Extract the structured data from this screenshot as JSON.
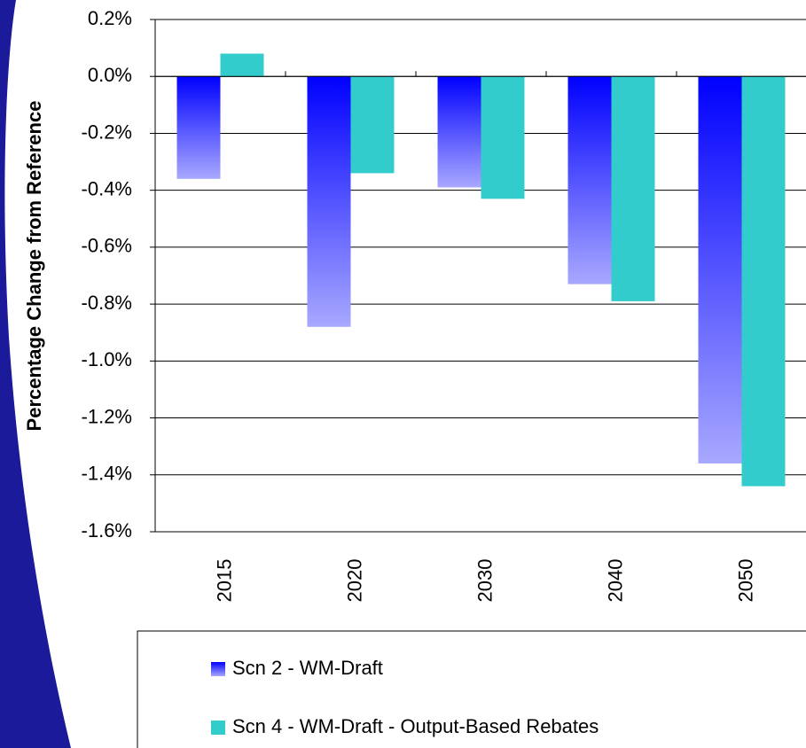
{
  "chart_data": {
    "type": "bar",
    "y_label": "Percentage Change from Reference",
    "categories": [
      "2015",
      "2020",
      "2030",
      "2040",
      "2050"
    ],
    "series": [
      {
        "name": "Scn 2 - WM-Draft",
        "color": "#0000ff",
        "values": [
          -0.36,
          -0.88,
          -0.39,
          -0.73,
          -1.36
        ]
      },
      {
        "name": "Scn 4 - WM-Draft - Output-Based Rebates",
        "color": "#33cccc",
        "values": [
          0.08,
          -0.34,
          -0.43,
          -0.79,
          -1.44
        ]
      }
    ],
    "ylim": [
      -1.6,
      0.2
    ],
    "yticks": [
      {
        "value": -1.6,
        "label": "-1.6%"
      },
      {
        "value": -1.4,
        "label": "-1.4%"
      },
      {
        "value": -1.2,
        "label": "-1.2%"
      },
      {
        "value": -1.0,
        "label": "-1.0%"
      },
      {
        "value": -0.8,
        "label": "-0.8%"
      },
      {
        "value": -0.6,
        "label": "-0.6%"
      },
      {
        "value": -0.4,
        "label": "-0.4%"
      },
      {
        "value": -0.2,
        "label": "-0.2%"
      },
      {
        "value": 0.0,
        "label": "0.0%"
      },
      {
        "value": 0.2,
        "label": "0.2%"
      }
    ],
    "grid": true
  }
}
